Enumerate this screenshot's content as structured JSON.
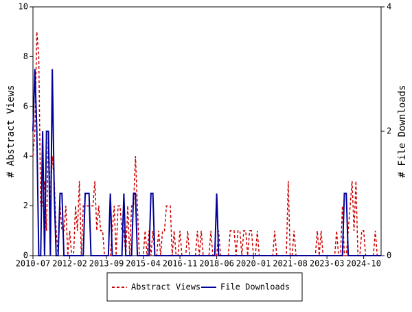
{
  "chart_data": {
    "type": "line",
    "ylabel": "# Abstract Views",
    "y2label": "# File Downloads",
    "start": "2010-07",
    "months": 181,
    "xticks": [
      "2010-07",
      "2012-02",
      "2013-09",
      "2015-04",
      "2016-11",
      "2018-06",
      "2020-01",
      "2021-08",
      "2023-03",
      "2024-10"
    ],
    "ylim": [
      0,
      10
    ],
    "yticks": [
      0,
      2,
      4,
      6,
      8,
      10
    ],
    "y2lim": [
      0,
      4
    ],
    "y2ticks": [
      0,
      2,
      4
    ],
    "series": [
      {
        "name": "Abstract Views",
        "color": "#cc0000",
        "dash": true,
        "values": [
          4,
          5,
          9,
          8,
          2,
          2,
          3,
          1,
          5,
          2,
          4,
          3,
          1,
          0,
          2,
          1,
          1,
          2,
          0,
          1,
          0,
          0,
          2,
          1,
          3,
          0,
          2,
          2,
          2,
          2,
          2,
          2,
          3,
          1,
          2,
          1,
          1,
          0,
          0,
          0,
          0,
          1,
          2,
          0,
          2,
          2,
          1,
          1,
          0,
          2,
          0,
          2,
          2,
          4,
          2,
          0,
          0,
          0,
          1,
          0,
          1,
          0,
          1,
          0,
          0,
          1,
          0,
          1,
          1,
          2,
          2,
          2,
          0,
          1,
          0,
          0,
          1,
          0,
          0,
          0,
          1,
          0,
          0,
          0,
          0,
          1,
          0,
          1,
          0,
          0,
          0,
          0,
          1,
          0,
          0,
          0,
          1,
          0,
          0,
          0,
          0,
          0,
          1,
          1,
          1,
          0,
          1,
          1,
          0,
          1,
          1,
          0,
          1,
          1,
          0,
          0,
          1,
          0,
          0,
          0,
          0,
          0,
          0,
          0,
          0,
          1,
          0,
          0,
          0,
          0,
          0,
          0,
          3,
          0,
          0,
          1,
          0,
          0,
          0,
          0,
          0,
          0,
          0,
          0,
          0,
          0,
          0,
          1,
          0,
          1,
          0,
          0,
          0,
          0,
          0,
          0,
          0,
          1,
          0,
          0,
          2,
          0,
          0,
          1,
          2,
          3,
          1,
          3,
          0,
          0,
          1,
          1,
          0,
          0,
          0,
          0,
          0,
          1,
          0,
          0,
          0
        ]
      },
      {
        "name": "File Downloads",
        "color": "#000099",
        "axis": "y2",
        "values": [
          2,
          3,
          2,
          0,
          0,
          2,
          0,
          2,
          2,
          0,
          3,
          1,
          0,
          0,
          1,
          1,
          0,
          0,
          0,
          0,
          0,
          0,
          0,
          0,
          0,
          0,
          0,
          1,
          1,
          1,
          0,
          0,
          0,
          0,
          0,
          0,
          0,
          0,
          0,
          0,
          1,
          0,
          0,
          0,
          0,
          0,
          0,
          1,
          0,
          0,
          0,
          0,
          1,
          1,
          0,
          0,
          0,
          0,
          0,
          0,
          0,
          1,
          1,
          0,
          0,
          0,
          0,
          0,
          0,
          0,
          0,
          0,
          0,
          0,
          0,
          0,
          0,
          0,
          0,
          0,
          0,
          0,
          0,
          0,
          0,
          0,
          0,
          0,
          0,
          0,
          0,
          0,
          0,
          0,
          0,
          1,
          0,
          0,
          0,
          0,
          0,
          0,
          0,
          0,
          0,
          0,
          0,
          0,
          0,
          0,
          0,
          0,
          0,
          0,
          0,
          0,
          0,
          0,
          0,
          0,
          0,
          0,
          0,
          0,
          0,
          0,
          0,
          0,
          0,
          0,
          0,
          0,
          0,
          0,
          0,
          0,
          0,
          0,
          0,
          0,
          0,
          0,
          0,
          0,
          0,
          0,
          0,
          0,
          0,
          0,
          0,
          0,
          0,
          0,
          0,
          0,
          0,
          0,
          0,
          0,
          0,
          1,
          1,
          0,
          0,
          0,
          0,
          0,
          0,
          0,
          0,
          0,
          0,
          0,
          0,
          0,
          0,
          0,
          0,
          0,
          0
        ]
      }
    ]
  }
}
